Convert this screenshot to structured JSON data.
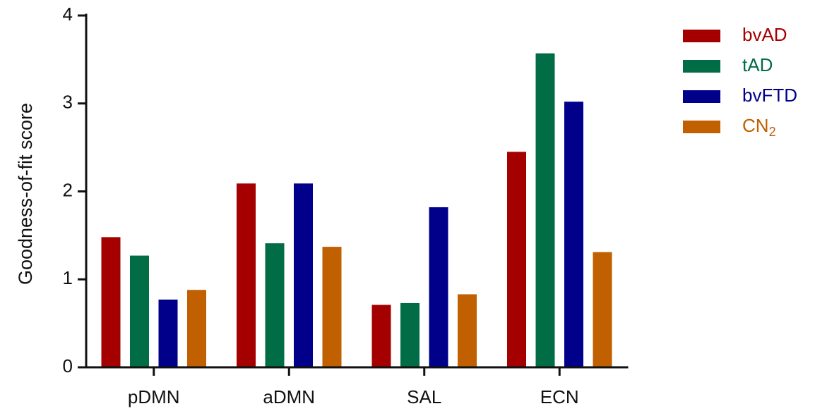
{
  "chart_data": {
    "type": "bar",
    "title": "",
    "xlabel": "",
    "ylabel": "Goodness-of-fit score",
    "categories": [
      "pDMN",
      "aDMN",
      "SAL",
      "ECN"
    ],
    "ylim": [
      0,
      4
    ],
    "yticks": [
      0,
      1,
      2,
      3,
      4
    ],
    "grid": false,
    "legend_position": "top-right",
    "series": [
      {
        "name": "bvAD",
        "name_base": "",
        "name_sub": "",
        "color": "#a50000",
        "values": [
          1.48,
          2.09,
          0.71,
          2.45
        ]
      },
      {
        "name": "tAD",
        "name_base": "",
        "name_sub": "",
        "color": "#016d46",
        "values": [
          1.27,
          1.41,
          0.73,
          3.57
        ]
      },
      {
        "name": "bvFTD",
        "name_base": "",
        "name_sub": "",
        "color": "#00008b",
        "values": [
          0.77,
          2.09,
          1.82,
          3.02
        ]
      },
      {
        "name": "CN2",
        "name_base": "CN",
        "name_sub": "2",
        "color": "#c06000",
        "values": [
          0.88,
          1.37,
          0.83,
          1.31
        ]
      }
    ]
  }
}
